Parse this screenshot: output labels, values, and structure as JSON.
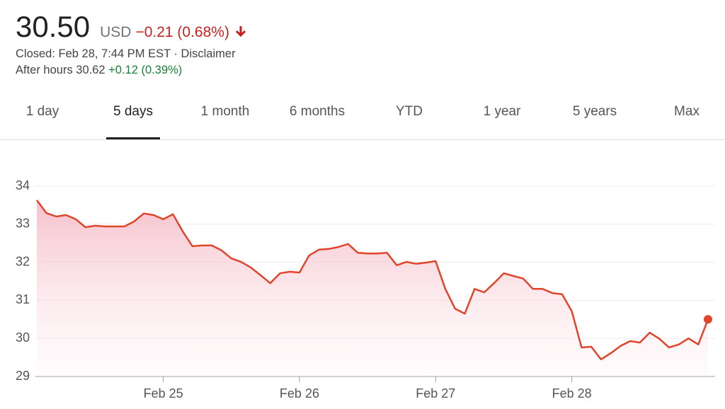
{
  "header": {
    "price": "30.50",
    "currency": "USD",
    "change": "−0.21 (0.68%)",
    "status": "Closed: Feb 28, 7:44 PM EST · Disclaimer",
    "after_hours": "After hours 30.62",
    "after_hours_change": "+0.12 (0.39%)"
  },
  "tabs": [
    "1 day",
    "5 days",
    "1 month",
    "6 months",
    "YTD",
    "1 year",
    "5 years",
    "Max"
  ],
  "chart_data": {
    "type": "line",
    "color": "#e0452b",
    "categories": [
      null,
      null,
      null,
      null,
      null,
      null,
      null,
      null,
      null,
      null,
      null,
      null,
      null,
      "Feb 25",
      null,
      null,
      null,
      null,
      null,
      null,
      null,
      null,
      null,
      null,
      null,
      null,
      null,
      "Feb 26",
      null,
      null,
      null,
      null,
      null,
      null,
      null,
      null,
      null,
      null,
      null,
      null,
      null,
      "Feb 27",
      null,
      null,
      null,
      null,
      null,
      null,
      null,
      null,
      null,
      null,
      null,
      null,
      null,
      "Feb 28",
      null,
      null,
      null,
      null,
      null,
      null,
      null,
      null,
      null,
      null,
      null,
      null,
      null,
      null
    ],
    "values": [
      33.63,
      33.29,
      33.2,
      33.24,
      33.13,
      32.92,
      32.96,
      32.94,
      32.94,
      32.94,
      33.07,
      33.28,
      33.24,
      33.13,
      33.26,
      32.81,
      32.42,
      32.44,
      32.44,
      32.31,
      32.1,
      32.01,
      31.86,
      31.66,
      31.45,
      31.71,
      31.75,
      31.73,
      32.18,
      32.33,
      32.35,
      32.4,
      32.48,
      32.25,
      32.23,
      32.23,
      32.25,
      31.92,
      32.01,
      31.96,
      31.99,
      32.03,
      31.3,
      30.78,
      30.65,
      31.3,
      31.21,
      31.45,
      31.71,
      31.64,
      31.57,
      31.3,
      31.3,
      31.19,
      31.16,
      30.71,
      29.76,
      29.78,
      29.45,
      29.61,
      29.8,
      29.93,
      29.89,
      30.15,
      29.99,
      29.76,
      29.84,
      30.0,
      29.84,
      30.5
    ],
    "ylim": [
      29,
      34
    ],
    "yticks": [
      29,
      30,
      31,
      32,
      33,
      34
    ],
    "grid": true
  }
}
